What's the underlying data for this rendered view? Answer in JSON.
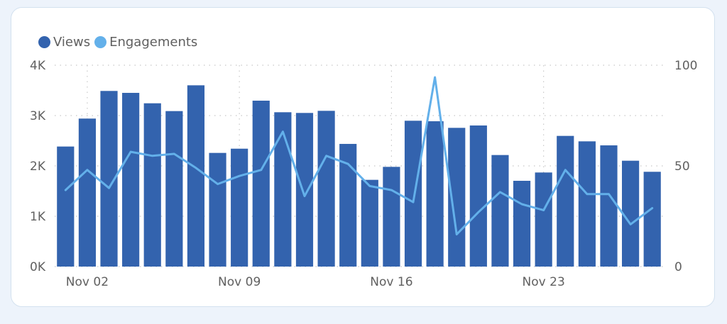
{
  "legend": {
    "views_label": "Views",
    "engagements_label": "Engagements"
  },
  "colors": {
    "views": "#3363ae",
    "engagements": "#63b0ea",
    "grid": "#c8c8c8",
    "card_border": "#d3e1ef",
    "background": "#edf3fb"
  },
  "chart_data": {
    "type": "bar",
    "title": "",
    "xlabel": "",
    "ylabel": "",
    "categories": [
      "Nov 01",
      "Nov 02",
      "Nov 03",
      "Nov 04",
      "Nov 05",
      "Nov 06",
      "Nov 07",
      "Nov 08",
      "Nov 09",
      "Nov 10",
      "Nov 11",
      "Nov 12",
      "Nov 13",
      "Nov 14",
      "Nov 15",
      "Nov 16",
      "Nov 17",
      "Nov 18",
      "Nov 19",
      "Nov 20",
      "Nov 21",
      "Nov 22",
      "Nov 23",
      "Nov 24",
      "Nov 25",
      "Nov 26",
      "Nov 27",
      "Nov 28"
    ],
    "x_tick_labels": [
      {
        "index": 1,
        "label": "Nov 02"
      },
      {
        "index": 8,
        "label": "Nov 09"
      },
      {
        "index": 15,
        "label": "Nov 16"
      },
      {
        "index": 22,
        "label": "Nov 23"
      }
    ],
    "series": [
      {
        "name": "Views",
        "type": "bar",
        "axis": "left",
        "values": [
          2385,
          2940,
          3489,
          3451,
          3244,
          3089,
          3601,
          2258,
          2342,
          3296,
          3066,
          3052,
          3094,
          2437,
          1723,
          1981,
          2897,
          2887,
          2756,
          2803,
          2216,
          1704,
          1869,
          2596,
          2488,
          2408,
          2103,
          1883
        ]
      },
      {
        "name": "Engagements",
        "type": "line",
        "axis": "right",
        "values": [
          38,
          48,
          39,
          57,
          55,
          56,
          49,
          41,
          45,
          48,
          67,
          35,
          55,
          51,
          40,
          38,
          32,
          94,
          16,
          27,
          37,
          31,
          28,
          48,
          36,
          36,
          21,
          29
        ]
      }
    ],
    "y_left": {
      "ylim": [
        0,
        4000
      ],
      "ticks": [
        0,
        1000,
        2000,
        3000,
        4000
      ],
      "tick_labels": [
        "0K",
        "1K",
        "2K",
        "3K",
        "4K"
      ]
    },
    "y_right": {
      "ylim": [
        0,
        100
      ],
      "ticks": [
        0,
        50,
        100
      ],
      "tick_labels": [
        "0",
        "50",
        "100"
      ]
    },
    "grid": true,
    "legend_position": "top-left"
  }
}
